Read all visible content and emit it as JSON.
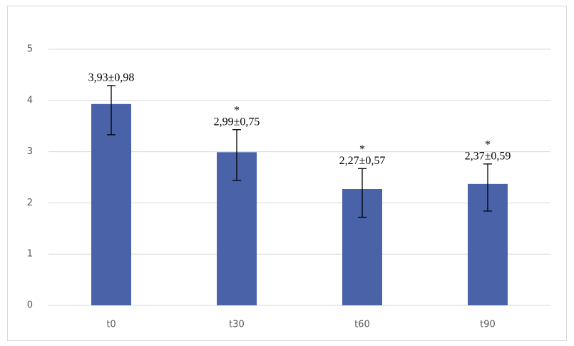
{
  "chart_data": {
    "type": "bar",
    "categories": [
      "t0",
      "t30",
      "t60",
      "t90"
    ],
    "values": [
      3.93,
      2.99,
      2.27,
      2.37
    ],
    "value_labels": [
      "3,93±0,98",
      "2,99±0,75",
      "2,27±0,57",
      "2,37±0,59"
    ],
    "error_plus": [
      0.36,
      0.44,
      0.4,
      0.39
    ],
    "error_minus": [
      0.6,
      0.55,
      0.55,
      0.53
    ],
    "annotations": [
      null,
      "*",
      "*",
      "*"
    ],
    "color": "#4a63a8",
    "ylim": [
      0,
      5
    ],
    "yticks": [
      0,
      1,
      2,
      3,
      4,
      5
    ],
    "grid": true
  }
}
